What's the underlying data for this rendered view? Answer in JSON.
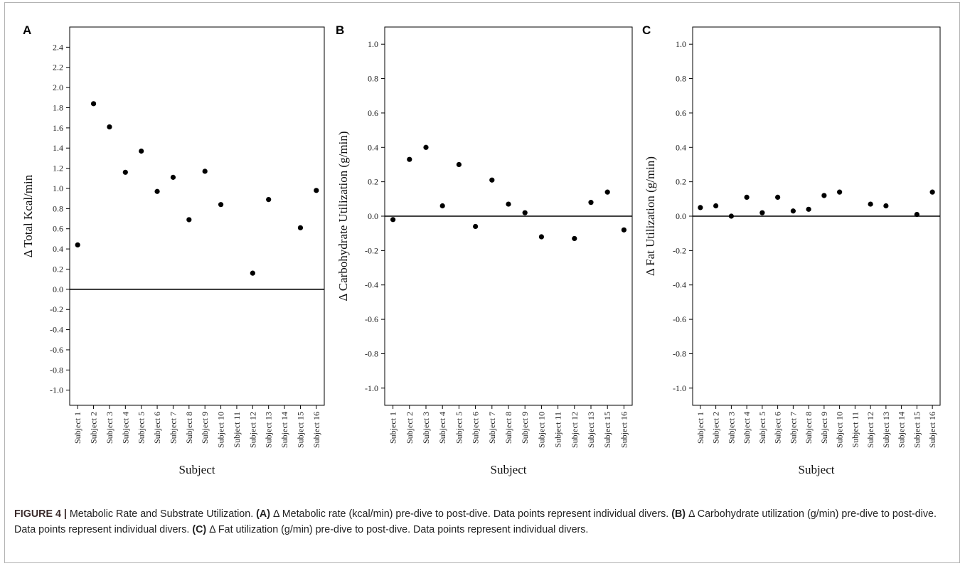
{
  "chart_data": [
    {
      "type": "scatter",
      "panel": "A",
      "categories": [
        "Subject 1",
        "Subject 2",
        "Subject 3",
        "Subject 4",
        "Subject 5",
        "Subject 6",
        "Subject 7",
        "Subject 8",
        "Subject 9",
        "Subject 10",
        "Subject 11",
        "Subject 12",
        "Subject 13",
        "Subject 14",
        "Subject 15",
        "Subject 16"
      ],
      "values": [
        0.44,
        1.84,
        1.61,
        1.16,
        1.37,
        0.97,
        1.11,
        0.69,
        1.17,
        0.84,
        null,
        0.16,
        0.89,
        null,
        0.61,
        0.98
      ],
      "xlabel": "Subject",
      "ylabel": "Δ  Total Kcal/min",
      "ylim": [
        -1.15,
        2.6
      ],
      "yticks": [
        2.4,
        2.2,
        2.0,
        1.8,
        1.6,
        1.4,
        1.2,
        1.0,
        0.8,
        0.6,
        0.4,
        0.2,
        0.0,
        -0.2,
        -0.4,
        -0.6,
        -0.8,
        -1.0
      ],
      "ytick_labels": [
        "2.4",
        "2.2",
        "2.0",
        "1.8",
        "1.6",
        "1.4",
        "1.2",
        "1.0",
        "0.8",
        "0.6",
        "0.4",
        "0.2",
        "0.0",
        "-0.2",
        "-0.4",
        "-0.6",
        "-0.8",
        "-1.0"
      ],
      "reference_line": 0.0,
      "grid": false
    },
    {
      "type": "scatter",
      "panel": "B",
      "categories": [
        "Subject 1",
        "Subject 2",
        "Subject 3",
        "Subject 4",
        "Subject 5",
        "Subject 6",
        "Subject 7",
        "Subject 8",
        "Subject 9",
        "Subject 10",
        "Subject 11",
        "Subject 12",
        "Subject 13",
        "Subject 15",
        "Subject 16"
      ],
      "values": [
        -0.02,
        0.33,
        0.4,
        0.06,
        0.3,
        -0.06,
        0.21,
        0.07,
        0.02,
        -0.12,
        null,
        -0.13,
        0.08,
        0.14,
        -0.08
      ],
      "xlabel": "Subject",
      "ylabel": "Δ  Carbohydrate Utilization (g/min)",
      "ylim": [
        -1.1,
        1.1
      ],
      "yticks": [
        1.0,
        0.8,
        0.6,
        0.4,
        0.2,
        0.0,
        -0.2,
        -0.4,
        -0.6,
        -0.8,
        -1.0
      ],
      "ytick_labels": [
        "1.0",
        "0.8",
        "0.6",
        "0.4",
        "0.2",
        "0.0",
        "-0.2",
        "-0.4",
        "-0.6",
        "-0.8",
        "-1.0"
      ],
      "reference_line": 0.0,
      "grid": false
    },
    {
      "type": "scatter",
      "panel": "C",
      "categories": [
        "Subject 1",
        "Subject 2",
        "Subject 3",
        "Subject 4",
        "Subject 5",
        "Subject 6",
        "Subject 7",
        "Subject 8",
        "Subject 9",
        "Subject 10",
        "Subject 11",
        "Subject 12",
        "Subject 13",
        "Subject 14",
        "Subject 15",
        "Subject 16"
      ],
      "values": [
        0.05,
        0.06,
        0.0,
        0.11,
        0.02,
        0.11,
        0.03,
        0.04,
        0.12,
        0.14,
        null,
        0.07,
        0.06,
        null,
        0.01,
        0.14
      ],
      "xlabel": "Subject",
      "ylabel": "Δ  Fat Utilization (g/min)",
      "ylim": [
        -1.1,
        1.1
      ],
      "yticks": [
        1.0,
        0.8,
        0.6,
        0.4,
        0.2,
        0.0,
        -0.2,
        -0.4,
        -0.6,
        -0.8,
        -1.0
      ],
      "ytick_labels": [
        "1.0",
        "0.8",
        "0.6",
        "0.4",
        "0.2",
        "0.0",
        "-0.2",
        "-0.4",
        "-0.6",
        "-0.8",
        "-1.0"
      ],
      "reference_line": 0.0,
      "grid": false
    }
  ],
  "caption": {
    "label": "FIGURE 4 |",
    "title": " Metabolic Rate and Substrate Utilization. ",
    "a_tag": "(A)",
    "a_text": " Δ Metabolic rate (kcal/min) pre-dive to post-dive. Data points represent individual divers. ",
    "b_tag": "(B)",
    "b_text": " Δ Carbohydrate utilization (g/min) pre-dive to post-dive. Data points represent individual divers. ",
    "c_tag": "(C)",
    "c_text": " Δ Fat utilization (g/min) pre-dive to post-dive. Data points represent individual divers."
  },
  "colors": {
    "points": "#000000",
    "axis": "#000000",
    "frame": "#b3b3b3"
  }
}
